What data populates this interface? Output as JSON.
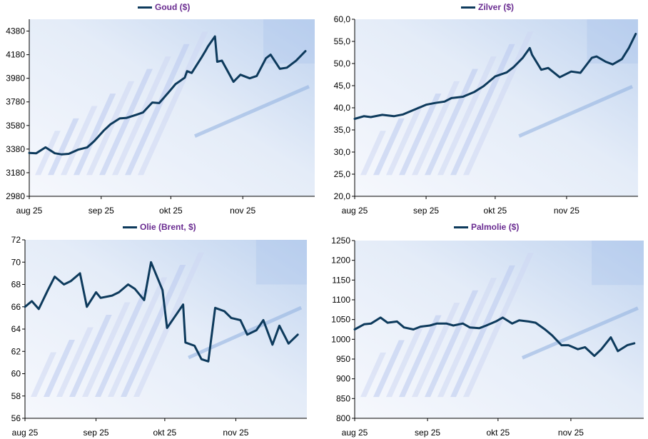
{
  "colors": {
    "series": "#0d3a5c",
    "legend_text": "#6a2c91"
  },
  "chart_data": [
    {
      "type": "line",
      "series": [
        {
          "name": "Goud ($)"
        }
      ],
      "x_ticks": [
        "aug 25",
        "sep 25",
        "okt 25",
        "nov 25"
      ],
      "y_ticks": [
        "2980",
        "3180",
        "3380",
        "3580",
        "3780",
        "3980",
        "4180",
        "4380"
      ],
      "ylim": [
        2980,
        4480
      ],
      "x": [
        "2025-08-01",
        "2025-08-04",
        "2025-08-08",
        "2025-08-12",
        "2025-08-15",
        "2025-08-18",
        "2025-08-22",
        "2025-08-26",
        "2025-08-29",
        "2025-09-02",
        "2025-09-05",
        "2025-09-09",
        "2025-09-12",
        "2025-09-16",
        "2025-09-19",
        "2025-09-23",
        "2025-09-26",
        "2025-09-30",
        "2025-10-03",
        "2025-10-07",
        "2025-10-08",
        "2025-10-10",
        "2025-10-14",
        "2025-10-16",
        "2025-10-17",
        "2025-10-20",
        "2025-10-21",
        "2025-10-23",
        "2025-10-28",
        "2025-10-31",
        "2025-11-04",
        "2025-11-07",
        "2025-11-11",
        "2025-11-13",
        "2025-11-17",
        "2025-11-20",
        "2025-11-24",
        "2025-11-28"
      ],
      "y": [
        3348,
        3345,
        3395,
        3345,
        3335,
        3340,
        3375,
        3395,
        3448,
        3535,
        3590,
        3640,
        3645,
        3670,
        3690,
        3775,
        3770,
        3860,
        3930,
        3985,
        4040,
        4025,
        4150,
        4215,
        4250,
        4335,
        4120,
        4130,
        3950,
        4010,
        3980,
        4000,
        4150,
        4180,
        4060,
        4070,
        4130,
        4210
      ]
    },
    {
      "type": "line",
      "series": [
        {
          "name": "Zilver ($)"
        }
      ],
      "x_ticks": [
        "aug 25",
        "sep 25",
        "okt 25",
        "nov 25"
      ],
      "y_ticks": [
        "20,0",
        "25,0",
        "30,0",
        "35,0",
        "40,0",
        "45,0",
        "50,0",
        "55,0",
        "60,0"
      ],
      "ylim": [
        20,
        60
      ],
      "x": [
        "2025-08-01",
        "2025-08-05",
        "2025-08-08",
        "2025-08-13",
        "2025-08-18",
        "2025-08-22",
        "2025-08-27",
        "2025-09-01",
        "2025-09-05",
        "2025-09-09",
        "2025-09-12",
        "2025-09-17",
        "2025-09-22",
        "2025-09-26",
        "2025-10-01",
        "2025-10-06",
        "2025-10-09",
        "2025-10-13",
        "2025-10-16",
        "2025-10-17",
        "2025-10-21",
        "2025-10-24",
        "2025-10-29",
        "2025-11-03",
        "2025-11-07",
        "2025-11-12",
        "2025-11-14",
        "2025-11-18",
        "2025-11-21",
        "2025-11-25",
        "2025-11-28",
        "2025-12-01"
      ],
      "y": [
        37.5,
        38.1,
        37.9,
        38.4,
        38.1,
        38.5,
        39.6,
        40.7,
        41.1,
        41.4,
        42.2,
        42.5,
        43.6,
        44.9,
        47.1,
        48.0,
        49.2,
        51.3,
        53.5,
        52.0,
        48.6,
        49.0,
        46.9,
        48.2,
        47.9,
        51.3,
        51.6,
        50.4,
        49.8,
        51.0,
        53.5,
        56.7
      ]
    },
    {
      "type": "line",
      "series": [
        {
          "name": "Olie (Brent, $)"
        }
      ],
      "x_ticks": [
        "aug 25",
        "sep 25",
        "okt 25",
        "nov 25"
      ],
      "y_ticks": [
        "56",
        "58",
        "60",
        "62",
        "64",
        "66",
        "68",
        "70",
        "72"
      ],
      "ylim": [
        56,
        72
      ],
      "x": [
        "2025-08-01",
        "2025-08-04",
        "2025-08-07",
        "2025-08-11",
        "2025-08-14",
        "2025-08-18",
        "2025-08-21",
        "2025-08-25",
        "2025-08-28",
        "2025-09-01",
        "2025-09-03",
        "2025-09-08",
        "2025-09-11",
        "2025-09-15",
        "2025-09-18",
        "2025-09-22",
        "2025-09-25",
        "2025-09-30",
        "2025-10-02",
        "2025-10-06",
        "2025-10-09",
        "2025-10-10",
        "2025-10-14",
        "2025-10-17",
        "2025-10-20",
        "2025-10-23",
        "2025-10-27",
        "2025-10-30",
        "2025-11-03",
        "2025-11-06",
        "2025-11-10",
        "2025-11-13",
        "2025-11-17",
        "2025-11-20",
        "2025-11-24",
        "2025-11-28"
      ],
      "y": [
        66.0,
        66.5,
        65.8,
        67.5,
        68.7,
        68.0,
        68.3,
        69.0,
        66.0,
        67.3,
        66.8,
        67.0,
        67.3,
        68.0,
        67.6,
        66.6,
        70.0,
        67.5,
        64.1,
        65.3,
        66.2,
        62.8,
        62.5,
        61.3,
        61.1,
        65.9,
        65.6,
        65.0,
        64.8,
        63.5,
        63.9,
        64.8,
        62.6,
        64.3,
        62.7,
        63.5
      ]
    },
    {
      "type": "line",
      "series": [
        {
          "name": "Palmolie ($)"
        }
      ],
      "x_ticks": [
        "aug 25",
        "sep 25",
        "okt 25",
        "nov 25"
      ],
      "y_ticks": [
        "800",
        "850",
        "900",
        "950",
        "1000",
        "1050",
        "1100",
        "1150",
        "1200",
        "1250"
      ],
      "ylim": [
        800,
        1250
      ],
      "x": [
        "2025-08-01",
        "2025-08-05",
        "2025-08-08",
        "2025-08-12",
        "2025-08-15",
        "2025-08-19",
        "2025-08-22",
        "2025-08-26",
        "2025-08-29",
        "2025-09-02",
        "2025-09-05",
        "2025-09-09",
        "2025-09-12",
        "2025-09-16",
        "2025-09-19",
        "2025-09-23",
        "2025-09-26",
        "2025-09-30",
        "2025-10-03",
        "2025-10-07",
        "2025-10-10",
        "2025-10-14",
        "2025-10-17",
        "2025-10-21",
        "2025-10-24",
        "2025-10-28",
        "2025-10-31",
        "2025-11-04",
        "2025-11-07",
        "2025-11-11",
        "2025-11-14",
        "2025-11-18",
        "2025-11-21",
        "2025-11-25",
        "2025-11-28"
      ],
      "y": [
        1025,
        1038,
        1040,
        1055,
        1042,
        1045,
        1030,
        1025,
        1032,
        1035,
        1040,
        1040,
        1035,
        1040,
        1030,
        1028,
        1035,
        1045,
        1055,
        1040,
        1048,
        1045,
        1042,
        1025,
        1010,
        985,
        985,
        975,
        980,
        958,
        975,
        1005,
        970,
        985,
        990
      ]
    }
  ]
}
